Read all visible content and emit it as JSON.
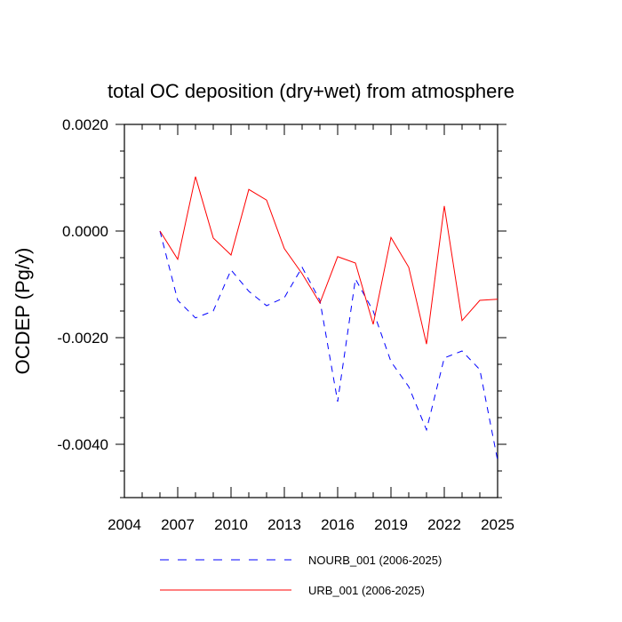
{
  "chart_data": {
    "type": "line",
    "title": "total OC deposition (dry+wet) from atmosphere",
    "xlabel": "",
    "ylabel": "OCDEP  (Pg/y)",
    "xlim": [
      2004,
      2025
    ],
    "ylim": [
      -0.005,
      0.002
    ],
    "x_ticks": [
      2004,
      2007,
      2010,
      2013,
      2016,
      2019,
      2022,
      2025
    ],
    "y_ticks": [
      0.002,
      0.0,
      -0.002,
      -0.004
    ],
    "x_tick_labels": [
      "2004",
      "2007",
      "2010",
      "2013",
      "2016",
      "2019",
      "2022",
      "2025"
    ],
    "y_tick_labels": [
      "0.0020",
      "0.0000",
      "-0.0020",
      "-0.0040"
    ],
    "x": [
      2006,
      2007,
      2008,
      2009,
      2010,
      2011,
      2012,
      2013,
      2014,
      2015,
      2016,
      2017,
      2018,
      2019,
      2020,
      2021,
      2022,
      2023,
      2024,
      2025
    ],
    "series": [
      {
        "name": "NOURB_001 (2006-2025)",
        "legend_label": "NOURB_001 (2006-2025)",
        "color": "#0000ff",
        "style": "dashed",
        "values": [
          0.0,
          -0.0013,
          -0.00163,
          -0.0015,
          -0.00073,
          -0.00113,
          -0.0014,
          -0.00125,
          -0.00068,
          -0.0013,
          -0.0032,
          -0.0009,
          -0.0015,
          -0.00245,
          -0.00292,
          -0.00373,
          -0.00238,
          -0.00225,
          -0.0026,
          -0.0043
        ]
      },
      {
        "name": "URB_001 (2006-2025)",
        "legend_label": "URB_001 (2006-2025)",
        "color": "#ff0000",
        "style": "solid",
        "values": [
          0.0,
          -0.00053,
          0.00102,
          -0.00013,
          -0.00045,
          0.00078,
          0.00058,
          -0.00033,
          -0.0008,
          -0.00135,
          -0.00048,
          -0.0006,
          -0.00175,
          -0.00012,
          -0.00068,
          -0.00212,
          0.00047,
          -0.00168,
          -0.0013,
          -0.00128
        ]
      }
    ]
  }
}
